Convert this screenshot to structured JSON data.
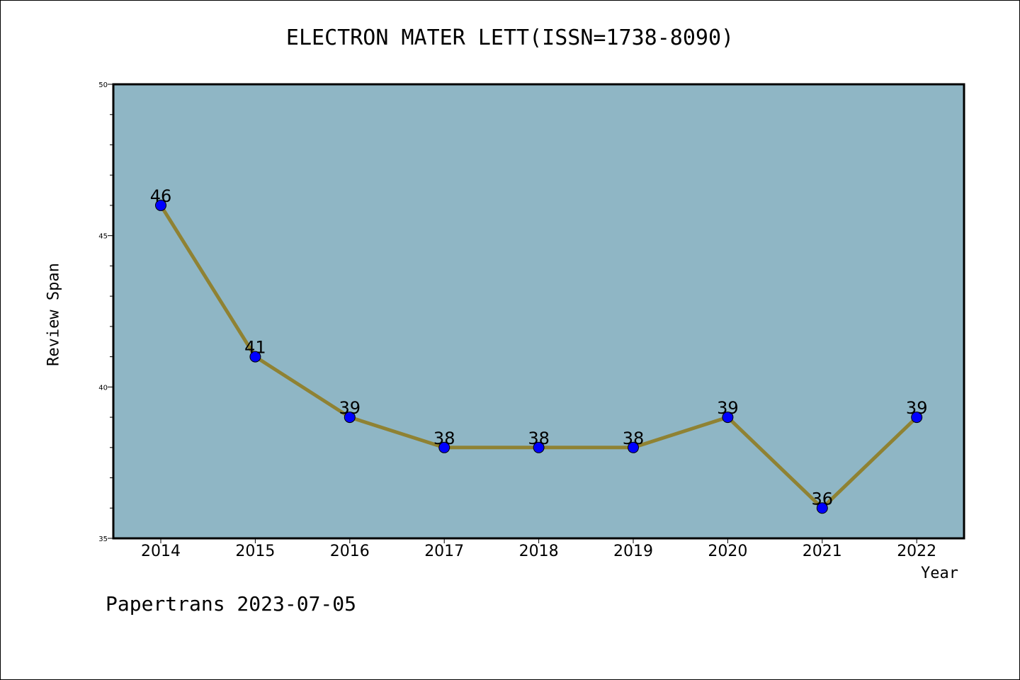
{
  "chart_data": {
    "type": "line",
    "title": "ELECTRON MATER LETT(ISSN=1738-8090)",
    "xlabel": "Year",
    "ylabel": "Review Span",
    "x": [
      "2014",
      "2015",
      "2016",
      "2017",
      "2018",
      "2019",
      "2020",
      "2021",
      "2022"
    ],
    "values": [
      46,
      41,
      39,
      38,
      38,
      38,
      39,
      36,
      39
    ],
    "data_labels": [
      "46",
      "41",
      "39",
      "38",
      "38",
      "38",
      "39",
      "36",
      "39"
    ],
    "ylim": [
      35,
      50
    ],
    "yticks": [
      35,
      40,
      45,
      50
    ],
    "grid": false,
    "colors": {
      "plot_background": "#8fb6c5",
      "line": "#8f8233",
      "marker": "#0000ff"
    }
  },
  "footer": "Papertrans 2023-07-05"
}
